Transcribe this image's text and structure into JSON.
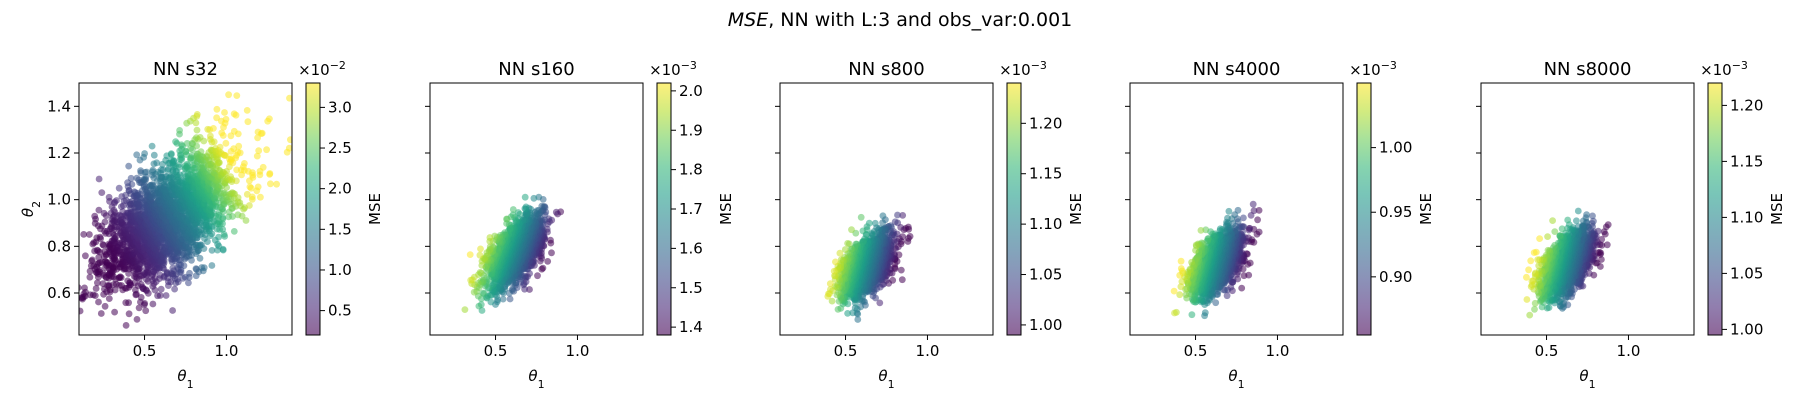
{
  "figure": {
    "title_italic": "MSE",
    "title_rest": ", NN with L:3 and obs_var:0.001"
  },
  "colormap": [
    "#440154",
    "#482878",
    "#3e4989",
    "#31688e",
    "#26828e",
    "#1f9e89",
    "#35b779",
    "#6ece58",
    "#b5de2b",
    "#fde725"
  ],
  "chart_data": [
    {
      "type": "scatter",
      "title": "NN s32",
      "xlabel": "θ",
      "xlabel_sub": "1",
      "ylabel": "θ",
      "ylabel_sub": "2",
      "xlim": [
        0.1,
        1.4
      ],
      "ylim": [
        0.42,
        1.5
      ],
      "xticks": [
        0.5,
        1.0
      ],
      "xticklabels": [
        "0.5",
        "1.0"
      ],
      "yticks": [
        0.6,
        0.8,
        1.0,
        1.2,
        1.4
      ],
      "yticklabels": [
        "0.6",
        "0.8",
        "1.0",
        "1.2",
        "1.4"
      ],
      "show_yticklabels": true,
      "cloud": {
        "cx": 0.63,
        "cy": 0.91,
        "sx": 0.2,
        "sy": 0.14,
        "rho": 0.55,
        "n": 2600,
        "w_dir": [
          0.86,
          0.5
        ],
        "tail": true
      },
      "colorbar": {
        "label": "MSE",
        "exponent_base": "×10",
        "exponent": "−2",
        "cmin": 0.2,
        "cmax": 3.3,
        "ticks": [
          0.5,
          1.0,
          1.5,
          2.0,
          2.5,
          3.0
        ],
        "ticklabels": [
          "0.5",
          "1.0",
          "1.5",
          "2.0",
          "2.5",
          "3.0"
        ]
      }
    },
    {
      "type": "scatter",
      "title": "NN s160",
      "xlabel": "θ",
      "xlabel_sub": "1",
      "xlim": [
        0.1,
        1.4
      ],
      "ylim": [
        0.42,
        1.5
      ],
      "xticks": [
        0.5,
        1.0
      ],
      "xticklabels": [
        "0.5",
        "1.0"
      ],
      "yticks": [
        0.6,
        0.8,
        1.0,
        1.2,
        1.4
      ],
      "show_yticklabels": false,
      "cloud": {
        "cx": 0.62,
        "cy": 0.78,
        "sx": 0.085,
        "sy": 0.075,
        "rho": 0.6,
        "n": 1700,
        "w_dir": [
          -0.9,
          0.42
        ],
        "tail": false
      },
      "colorbar": {
        "label": "MSE",
        "exponent_base": "×10",
        "exponent": "−3",
        "cmin": 1.38,
        "cmax": 2.02,
        "ticks": [
          1.4,
          1.5,
          1.6,
          1.7,
          1.8,
          1.9,
          2.0
        ],
        "ticklabels": [
          "1.4",
          "1.5",
          "1.6",
          "1.7",
          "1.8",
          "1.9",
          "2.0"
        ]
      }
    },
    {
      "type": "scatter",
      "title": "NN s800",
      "xlabel": "θ",
      "xlabel_sub": "1",
      "xlim": [
        0.1,
        1.4
      ],
      "ylim": [
        0.42,
        1.5
      ],
      "xticks": [
        0.5,
        1.0
      ],
      "xticklabels": [
        "0.5",
        "1.0"
      ],
      "yticks": [
        0.6,
        0.8,
        1.0,
        1.2,
        1.4
      ],
      "show_yticklabels": false,
      "cloud": {
        "cx": 0.63,
        "cy": 0.72,
        "sx": 0.08,
        "sy": 0.07,
        "rho": 0.55,
        "n": 1600,
        "w_dir": [
          -0.95,
          0.3
        ],
        "tail": false
      },
      "colorbar": {
        "label": "MSE",
        "exponent_base": "×10",
        "exponent": "−3",
        "cmin": 0.99,
        "cmax": 1.24,
        "ticks": [
          1.0,
          1.05,
          1.1,
          1.15,
          1.2
        ],
        "ticklabels": [
          "1.00",
          "1.05",
          "1.10",
          "1.15",
          "1.20"
        ]
      }
    },
    {
      "type": "scatter",
      "title": "NN s4000",
      "xlabel": "θ",
      "xlabel_sub": "1",
      "xlim": [
        0.1,
        1.4
      ],
      "ylim": [
        0.42,
        1.5
      ],
      "xticks": [
        0.5,
        1.0
      ],
      "xticklabels": [
        "0.5",
        "1.0"
      ],
      "yticks": [
        0.6,
        0.8,
        1.0,
        1.2,
        1.4
      ],
      "show_yticklabels": false,
      "cloud": {
        "cx": 0.63,
        "cy": 0.73,
        "sx": 0.08,
        "sy": 0.07,
        "rho": 0.55,
        "n": 1600,
        "w_dir": [
          -0.95,
          0.3
        ],
        "tail": false
      },
      "colorbar": {
        "label": "MSE",
        "exponent_base": "×10",
        "exponent": "−3",
        "cmin": 0.855,
        "cmax": 1.05,
        "ticks": [
          0.9,
          0.95,
          1.0
        ],
        "ticklabels": [
          "0.90",
          "0.95",
          "1.00"
        ]
      }
    },
    {
      "type": "scatter",
      "title": "NN s8000",
      "xlabel": "θ",
      "xlabel_sub": "1",
      "xlim": [
        0.1,
        1.4
      ],
      "ylim": [
        0.42,
        1.5
      ],
      "xticks": [
        0.5,
        1.0
      ],
      "xticklabels": [
        "0.5",
        "1.0"
      ],
      "yticks": [
        0.6,
        0.8,
        1.0,
        1.2,
        1.4
      ],
      "show_yticklabels": false,
      "cloud": {
        "cx": 0.63,
        "cy": 0.73,
        "sx": 0.08,
        "sy": 0.07,
        "rho": 0.55,
        "n": 1600,
        "w_dir": [
          -0.95,
          0.3
        ],
        "tail": false
      },
      "colorbar": {
        "label": "MSE",
        "exponent_base": "×10",
        "exponent": "−3",
        "cmin": 0.995,
        "cmax": 1.22,
        "ticks": [
          1.0,
          1.05,
          1.1,
          1.15,
          1.2
        ],
        "ticklabels": [
          "1.00",
          "1.05",
          "1.10",
          "1.15",
          "1.20"
        ]
      }
    }
  ]
}
